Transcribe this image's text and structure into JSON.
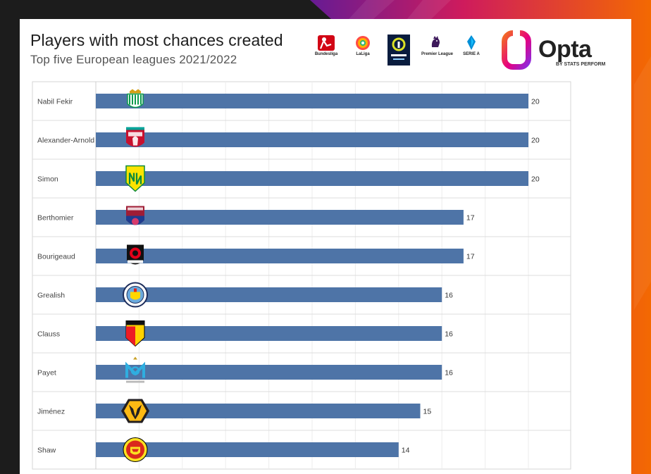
{
  "header": {
    "title": "Players with most chances created",
    "subtitle": "Top five European leagues 2021/2022"
  },
  "leagues": [
    {
      "name": "Bundesliga",
      "icon": "bundesliga-logo-icon",
      "color": "#d20515"
    },
    {
      "name": "LaLiga",
      "icon": "laliga-logo-icon",
      "color": "#ff4b44"
    },
    {
      "name": "LIGUE 1",
      "icon": "ligue1-logo-icon",
      "color": "#091c3e"
    },
    {
      "name": "Premier League",
      "icon": "premier-league-logo-icon",
      "color": "#3d195b"
    },
    {
      "name": "SERIE A",
      "icon": "serie-a-logo-icon",
      "color": "#008fd7"
    }
  ],
  "brand": {
    "name": "Opta",
    "tagline": "BY STATS PERFORM",
    "colors": {
      "orange": "#f36f21",
      "pink": "#e6007e",
      "purple": "#8a2be2"
    }
  },
  "chart_data": {
    "type": "bar",
    "orientation": "horizontal",
    "title": "Players with most chances created",
    "subtitle": "Top five European leagues 2021/2022",
    "xlabel": "",
    "ylabel": "",
    "xlim": [
      0,
      20
    ],
    "grid": true,
    "bar_color": "#4e74a7",
    "categories": [
      "Nabil Fekir",
      "Alexander-Arnold",
      "Simon",
      "Berthomier",
      "Bourigeaud",
      "Grealish",
      "Clauss",
      "Payet",
      "Jiménez",
      "Shaw"
    ],
    "values": [
      20,
      20,
      20,
      17,
      17,
      16,
      16,
      16,
      15,
      14
    ],
    "value_labels": [
      "20",
      "20",
      "20",
      "17",
      "17",
      "16",
      "16",
      "16",
      "15",
      "14"
    ],
    "club_badges": [
      {
        "icon": "real-betis-badge-icon",
        "primary": "#0b9a4b",
        "secondary": "#ffffff"
      },
      {
        "icon": "liverpool-badge-icon",
        "primary": "#c8102e",
        "secondary": "#00a398"
      },
      {
        "icon": "fc-nantes-badge-icon",
        "primary": "#fce300",
        "secondary": "#0c8a3c"
      },
      {
        "icon": "clermont-foot-badge-icon",
        "primary": "#9f1d35",
        "secondary": "#1d3c8f"
      },
      {
        "icon": "stade-rennais-badge-icon",
        "primary": "#e2001a",
        "secondary": "#111111"
      },
      {
        "icon": "manchester-city-badge-icon",
        "primary": "#6cabdd",
        "secondary": "#1c2c5b"
      },
      {
        "icon": "rc-lens-badge-icon",
        "primary": "#ed1c24",
        "secondary": "#ffd200"
      },
      {
        "icon": "olympique-marseille-badge-icon",
        "primary": "#2faee0",
        "secondary": "#ffffff"
      },
      {
        "icon": "wolves-badge-icon",
        "primary": "#fdb913",
        "secondary": "#231f20"
      },
      {
        "icon": "manchester-united-badge-icon",
        "primary": "#da291c",
        "secondary": "#fbe122"
      }
    ]
  }
}
